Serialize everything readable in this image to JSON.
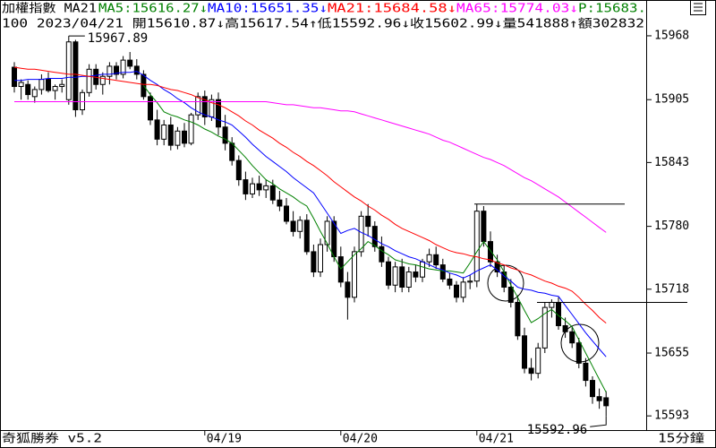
{
  "chart_data": {
    "type": "candlestick",
    "title": "加權指數 MA21",
    "price_label": "P:15683.",
    "info_line": "100 2023/04/21 開15610.87↓高15617.54↑低15592.96↓收15602.99↓量541888↑額302832",
    "footer_left": "奇狐勝券 v5.2",
    "footer_right": "15分鐘",
    "ylim": [
      15579,
      15971.5
    ],
    "yticks": [
      15968,
      15905,
      15843,
      15780,
      15718,
      15655,
      15593
    ],
    "up_color": "#ffffff",
    "down_color": "#000000",
    "categories": [
      null,
      null,
      null,
      null,
      null,
      null,
      null,
      null,
      null,
      null,
      null,
      null,
      null,
      null,
      null,
      null,
      null,
      null,
      null,
      null,
      null,
      null,
      null,
      null,
      null,
      null,
      null,
      null,
      "04/19",
      null,
      null,
      null,
      null,
      null,
      null,
      null,
      null,
      null,
      null,
      null,
      null,
      null,
      null,
      null,
      null,
      null,
      null,
      null,
      "04/20",
      null,
      null,
      null,
      null,
      null,
      null,
      null,
      null,
      null,
      null,
      null,
      null,
      null,
      null,
      null,
      null,
      null,
      null,
      null,
      "04/21",
      null,
      null,
      null,
      null,
      null,
      null,
      null,
      null,
      null,
      null,
      null,
      null,
      null,
      null,
      null,
      null,
      null,
      null,
      null
    ],
    "ohlc": [
      [
        15937,
        15942,
        15912,
        15918
      ],
      [
        15918,
        15925,
        15905,
        15922
      ],
      [
        15920,
        15924,
        15905,
        15910
      ],
      [
        15908,
        15918,
        15902,
        15915
      ],
      [
        15915,
        15930,
        15910,
        15925
      ],
      [
        15925,
        15932,
        15912,
        15914
      ],
      [
        15914,
        15920,
        15905,
        15918
      ],
      [
        15918,
        15925,
        15912,
        15920
      ],
      [
        15905,
        15967.89,
        15900,
        15962
      ],
      [
        15962,
        15964,
        15888,
        15895
      ],
      [
        15895,
        15915,
        15890,
        15912
      ],
      [
        15912,
        15940,
        15908,
        15935
      ],
      [
        15935,
        15940,
        15915,
        15920
      ],
      [
        15920,
        15932,
        15910,
        15928
      ],
      [
        15928,
        15942,
        15920,
        15938
      ],
      [
        15938,
        15942,
        15925,
        15930
      ],
      [
        15930,
        15948,
        15926,
        15944
      ],
      [
        15944,
        15952,
        15935,
        15938
      ],
      [
        15938,
        15945,
        15925,
        15930
      ],
      [
        15930,
        15934,
        15905,
        15908
      ],
      [
        15908,
        15912,
        15880,
        15885
      ],
      [
        15885,
        15895,
        15860,
        15866
      ],
      [
        15866,
        15885,
        15860,
        15880
      ],
      [
        15880,
        15888,
        15855,
        15860
      ],
      [
        15860,
        15878,
        15856,
        15874
      ],
      [
        15874,
        15882,
        15858,
        15862
      ],
      [
        15862,
        15892,
        15860,
        15890
      ],
      [
        15890,
        15912,
        15885,
        15908
      ],
      [
        15908,
        15914,
        15880,
        15888
      ],
      [
        15888,
        15910,
        15884,
        15905
      ],
      [
        15905,
        15912,
        15870,
        15878
      ],
      [
        15878,
        15890,
        15855,
        15862
      ],
      [
        15862,
        15868,
        15840,
        15845
      ],
      [
        15845,
        15850,
        15820,
        15826
      ],
      [
        15826,
        15834,
        15806,
        15812
      ],
      [
        15812,
        15828,
        15808,
        15822
      ],
      [
        15822,
        15830,
        15810,
        15816
      ],
      [
        15816,
        15826,
        15808,
        15820
      ],
      [
        15820,
        15826,
        15802,
        15806
      ],
      [
        15806,
        15815,
        15795,
        15800
      ],
      [
        15800,
        15808,
        15782,
        15785
      ],
      [
        15785,
        15795,
        15770,
        15775
      ],
      [
        15775,
        15790,
        15768,
        15786
      ],
      [
        15786,
        15792,
        15752,
        15755
      ],
      [
        15755,
        15762,
        15730,
        15735
      ],
      [
        15735,
        15768,
        15730,
        15762
      ],
      [
        15762,
        15790,
        15755,
        15785
      ],
      [
        15785,
        15790,
        15745,
        15750
      ],
      [
        15750,
        15760,
        15720,
        15725
      ],
      [
        15725,
        15735,
        15688,
        15710
      ],
      [
        15710,
        15760,
        15705,
        15755
      ],
      [
        15755,
        15795,
        15750,
        15790
      ],
      [
        15790,
        15802,
        15770,
        15780
      ],
      [
        15780,
        15785,
        15755,
        15760
      ],
      [
        15760,
        15770,
        15740,
        15745
      ],
      [
        15745,
        15750,
        15718,
        15722
      ],
      [
        15722,
        15745,
        15715,
        15740
      ],
      [
        15740,
        15748,
        15715,
        15720
      ],
      [
        15720,
        15740,
        15715,
        15735
      ],
      [
        15735,
        15742,
        15725,
        15730
      ],
      [
        15730,
        15748,
        15725,
        15745
      ],
      [
        15745,
        15758,
        15740,
        15752
      ],
      [
        15752,
        15760,
        15738,
        15742
      ],
      [
        15742,
        15748,
        15725,
        15728
      ],
      [
        15728,
        15734,
        15718,
        15722
      ],
      [
        15722,
        15726,
        15705,
        15710
      ],
      [
        15710,
        15730,
        15705,
        15725
      ],
      [
        15725,
        15732,
        15718,
        15726
      ],
      [
        15726,
        15802,
        15720,
        15795
      ],
      [
        15795,
        15800,
        15760,
        15765
      ],
      [
        15765,
        15775,
        15740,
        15745
      ],
      [
        15745,
        15752,
        15730,
        15735
      ],
      [
        15735,
        15742,
        15715,
        15720
      ],
      [
        15720,
        15728,
        15700,
        15705
      ],
      [
        15705,
        15712,
        15668,
        15672
      ],
      [
        15672,
        15680,
        15635,
        15640
      ],
      [
        15640,
        15650,
        15628,
        15635
      ],
      [
        15635,
        15665,
        15630,
        15660
      ],
      [
        15660,
        15705,
        15655,
        15700
      ],
      [
        15700,
        15708,
        15690,
        15705
      ],
      [
        15705,
        15710,
        15678,
        15682
      ],
      [
        15682,
        15690,
        15670,
        15676
      ],
      [
        15676,
        15682,
        15660,
        15665
      ],
      [
        15665,
        15670,
        15640,
        15645
      ],
      [
        15645,
        15650,
        15622,
        15628
      ],
      [
        15628,
        15632,
        15605,
        15612
      ],
      [
        15612,
        15620,
        15600,
        15608
      ],
      [
        15610.87,
        15617.54,
        15592.96,
        15602.99
      ]
    ],
    "series": [
      {
        "name": "MA5",
        "label": "MA5:15616.27↓",
        "color": "#008000",
        "values": [
          null,
          null,
          null,
          null,
          null,
          null,
          null,
          null,
          null,
          null,
          null,
          null,
          null,
          null,
          null,
          null,
          null,
          null,
          null,
          15919,
          15910,
          15902,
          15893,
          15890,
          15888,
          15885,
          15883,
          15880,
          15876,
          15873,
          15869,
          15866,
          15862,
          15855,
          15848,
          15840,
          15833,
          15826,
          15822,
          15817,
          15813,
          15809,
          15804,
          15800,
          15788,
          15775,
          15763,
          15750,
          15738,
          15745,
          15752,
          15758,
          15765,
          15761,
          15756,
          15752,
          15747,
          15745,
          15743,
          15742,
          15740,
          15738,
          15737,
          15736,
          15736,
          15735,
          15734,
          15744,
          15755,
          15765,
          15756,
          15747,
          15735,
          15722,
          15710,
          15697,
          15685,
          15689,
          15694,
          15698,
          15692,
          15687,
          15681,
          15668,
          15655,
          15642,
          15629,
          15616.27
        ]
      },
      {
        "name": "MA10",
        "label": "MA10:15651.35↓",
        "color": "#0000ff",
        "values": [
          15924,
          15924,
          15925,
          15925,
          15925,
          15926,
          15926,
          15926,
          15927,
          15927,
          15928,
          15928,
          15929,
          15930,
          15930,
          15931,
          15932,
          15932,
          15933,
          15929,
          15924,
          15920,
          15915,
          15911,
          15906,
          15902,
          15897,
          15893,
          15890,
          15888,
          15885,
          15883,
          15880,
          15874,
          15868,
          15861,
          15855,
          15849,
          15844,
          15839,
          15834,
          15828,
          15823,
          15818,
          15813,
          15803,
          15793,
          15783,
          15773,
          15776,
          15778,
          15774,
          15771,
          15767,
          15763,
          15760,
          15756,
          15753,
          15750,
          15748,
          15745,
          15742,
          15739,
          15737,
          15734,
          15732,
          15729,
          15732,
          15736,
          15739,
          15742,
          15737,
          15731,
          15726,
          15720,
          15718,
          15717,
          15715,
          15714,
          15712,
          15711,
          15702,
          15693,
          15684,
          15675,
          15667,
          15659,
          15651.35
        ]
      },
      {
        "name": "MA21",
        "label": "MA21:15684.58↓",
        "color": "#ff0000",
        "values": [
          15937,
          15936,
          15935,
          15935,
          15934,
          15933,
          15932,
          15931,
          15930,
          15930,
          15929,
          15928,
          15927,
          15926,
          15925,
          15924,
          15923,
          15922,
          15921,
          15920,
          15920,
          15919,
          15917,
          15915,
          15914,
          15912,
          15910,
          15907,
          15905,
          15902,
          15900,
          15897,
          15893,
          15889,
          15884,
          15880,
          15875,
          15871,
          15867,
          15862,
          15858,
          15853,
          15849,
          15844,
          15840,
          15835,
          15830,
          15824,
          15819,
          15814,
          15809,
          15805,
          15800,
          15796,
          15791,
          15787,
          15782,
          15778,
          15775,
          15772,
          15769,
          15766,
          15762,
          15759,
          15756,
          15754,
          15753,
          15751,
          15750,
          15748,
          15747,
          15744,
          15742,
          15739,
          15737,
          15734,
          15732,
          15729,
          15726,
          15724,
          15721,
          15719,
          15716,
          15710,
          15703,
          15697,
          15690,
          15684.58
        ]
      },
      {
        "name": "MA65",
        "label": "MA65:15774.03↓",
        "color": "#ff00ff",
        "values": [
          15903,
          15903,
          15903,
          15903,
          15903,
          15903,
          15903,
          15903,
          15903,
          15903,
          15903,
          15903,
          15903,
          15903,
          15903,
          15903,
          15903,
          15903,
          15903,
          15903,
          15903,
          15903,
          15903,
          15903,
          15903,
          15903,
          15903,
          15903,
          15903,
          15903,
          15903,
          15903,
          15903,
          15903,
          15903,
          15903,
          15903,
          15903,
          15902,
          15901,
          15900,
          15900,
          15899,
          15898,
          15897,
          15897,
          15896,
          15895,
          15894,
          15894,
          15893,
          15891,
          15889,
          15887,
          15885,
          15883,
          15881,
          15879,
          15877,
          15875,
          15873,
          15871,
          15868,
          15865,
          15863,
          15860,
          15857,
          15854,
          15851,
          15848,
          15846,
          15843,
          15840,
          15836,
          15832,
          15828,
          15825,
          15821,
          15817,
          15813,
          15809,
          15804,
          15799,
          15794,
          15789,
          15784,
          15779,
          15774.03
        ]
      }
    ],
    "hlines": [
      15802,
      15705
    ],
    "annotations": [
      {
        "text": "15967.89",
        "value": 15967.89
      },
      {
        "text": "15592.96",
        "value": 15592.96
      }
    ]
  }
}
